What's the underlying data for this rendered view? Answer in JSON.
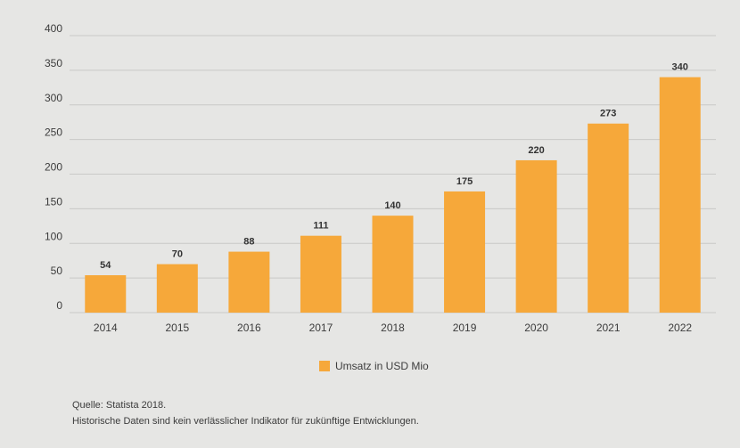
{
  "chart_data": {
    "type": "bar",
    "categories": [
      "2014",
      "2015",
      "2016",
      "2017",
      "2018",
      "2019",
      "2020",
      "2021",
      "2022"
    ],
    "values": [
      54,
      70,
      88,
      111,
      140,
      175,
      220,
      273,
      340
    ],
    "series": [
      {
        "name": "Umsatz in USD Mio",
        "values": [
          54,
          70,
          88,
          111,
          140,
          175,
          220,
          273,
          340
        ]
      }
    ],
    "title": "",
    "xlabel": "",
    "ylabel": "",
    "ylim": [
      0,
      400
    ],
    "yticks": [
      0,
      50,
      100,
      150,
      200,
      250,
      300,
      350,
      400
    ],
    "grid": true,
    "legend_position": "bottom-center",
    "bar_color": "#f6a83a",
    "grid_color": "#c9c9c7"
  },
  "legend": {
    "label": "Umsatz in USD Mio"
  },
  "footer": {
    "source": "Quelle: Statista 2018.",
    "note": "Historische Daten sind kein verlässlicher Indikator für zukünftige Entwicklungen."
  }
}
